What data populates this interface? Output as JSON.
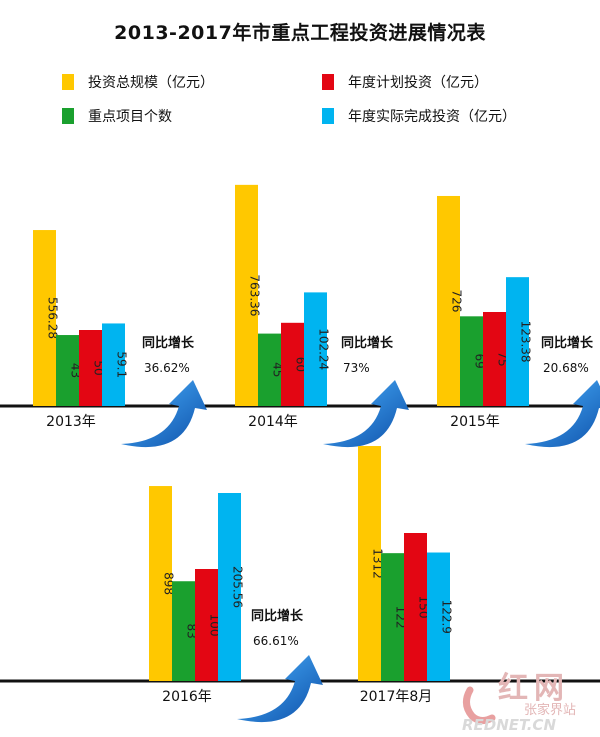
{
  "title": "2013-2017年市重点工程投资进展情况表",
  "legend": [
    {
      "label": "投资总规模（亿元）",
      "color": "#FFC800"
    },
    {
      "label": "年度计划投资（亿元）",
      "color": "#E30613"
    },
    {
      "label": "重点项目个数",
      "color": "#1AA02E"
    },
    {
      "label": "年度实际完成投资（亿元）",
      "color": "#00B4F0"
    }
  ],
  "yoy_label": "同比增长",
  "chart_data": {
    "type": "bar",
    "title": "2013-2017年市重点工程投资进展情况表",
    "series_keys": [
      "投资总规模（亿元）",
      "重点项目个数",
      "年度计划投资（亿元）",
      "年度实际完成投资（亿元）"
    ],
    "groups": [
      {
        "year": "2013年",
        "values": [
          556.28,
          43,
          50,
          59.1
        ],
        "labels": [
          "556.28",
          "43",
          "50",
          "59.1"
        ],
        "yoy": "36.62%"
      },
      {
        "year": "2014年",
        "values": [
          763.36,
          45,
          60,
          102.24
        ],
        "labels": [
          "763.36",
          "45",
          "60",
          "102.24"
        ],
        "yoy": "73%"
      },
      {
        "year": "2015年",
        "values": [
          726,
          69,
          75,
          123.38
        ],
        "labels": [
          "726",
          "69",
          "75",
          "123.38"
        ],
        "yoy": "20.68%"
      },
      {
        "year": "2016年",
        "values": [
          898,
          83,
          100,
          205.56
        ],
        "labels": [
          "898",
          "83",
          "100",
          "205.56"
        ],
        "yoy": "66.61%"
      },
      {
        "year": "2017年8月",
        "values": [
          1312,
          122,
          150,
          122.9
        ],
        "labels": [
          "1312",
          "122",
          "150",
          "122.9"
        ],
        "yoy": ""
      }
    ],
    "colors": [
      "#FFC800",
      "#1AA02E",
      "#E30613",
      "#00B4F0"
    ]
  },
  "logo": {
    "text1": "红网",
    "text2": "张家界站",
    "text3": "REDNET.CN"
  }
}
